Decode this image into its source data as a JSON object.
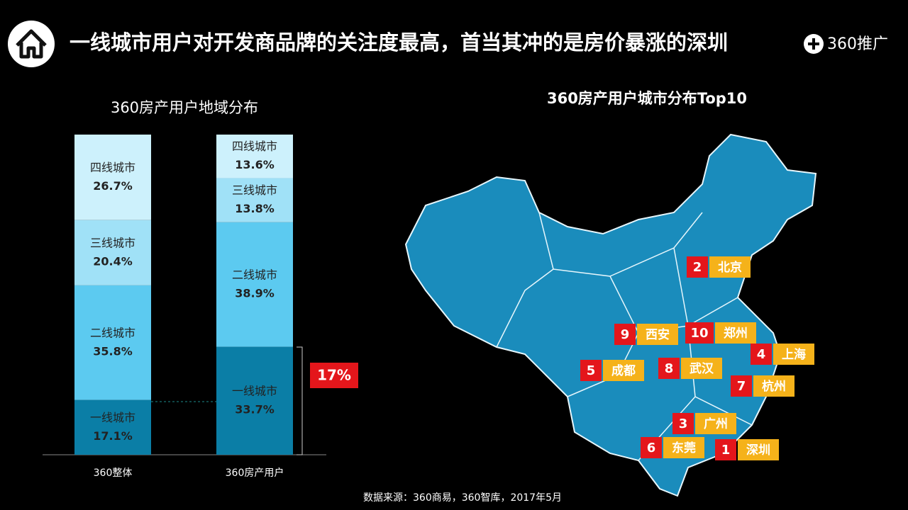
{
  "header": {
    "title": "一线城市用户对开发商品牌的关注度最高，首当其冲的是房价暴涨的深圳",
    "logo": "360推广"
  },
  "chart_data": {
    "type": "stacked_bar",
    "title": "360房产用户地域分布",
    "categories": [
      "360整体",
      "360房产用户"
    ],
    "ylim": [
      0,
      100
    ],
    "series": [
      {
        "name": "一线城市",
        "color": "#0b7ea6",
        "values": [
          17.1,
          33.7
        ],
        "value_labels": [
          "17.1%",
          "33.7%"
        ]
      },
      {
        "name": "二线城市",
        "color": "#5ccaf0",
        "values": [
          35.8,
          38.9
        ],
        "value_labels": [
          "35.8%",
          "38.9%"
        ]
      },
      {
        "name": "三线城市",
        "color": "#a0e1f7",
        "values": [
          20.4,
          13.8
        ],
        "value_labels": [
          "20.4%",
          "13.8%"
        ]
      },
      {
        "name": "四线城市",
        "color": "#cdf1fc",
        "values": [
          26.7,
          13.6
        ],
        "value_labels": [
          "26.7%",
          "13.6%"
        ]
      }
    ],
    "annotation": "17%"
  },
  "map": {
    "title": "360房产用户城市分布Top10",
    "cities": [
      {
        "rank": 2,
        "name": "北京"
      },
      {
        "rank": 9,
        "name": "西安"
      },
      {
        "rank": 10,
        "name": "郑州"
      },
      {
        "rank": 4,
        "name": "上海"
      },
      {
        "rank": 5,
        "name": "成都"
      },
      {
        "rank": 8,
        "name": "武汉"
      },
      {
        "rank": 7,
        "name": "杭州"
      },
      {
        "rank": 3,
        "name": "广州"
      },
      {
        "rank": 6,
        "name": "东莞"
      },
      {
        "rank": 1,
        "name": "深圳"
      }
    ]
  },
  "source": "数据来源：360商易，360智库，2017年5月"
}
